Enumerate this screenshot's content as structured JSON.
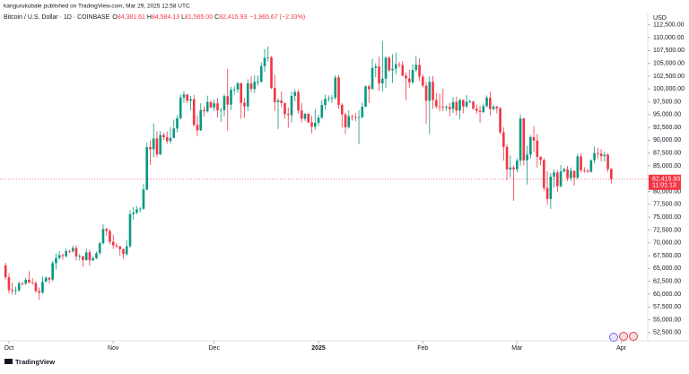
{
  "header": {
    "attribution": "kangurukubale published on TradingView.com, Mar 29, 2025 12:58 UTC",
    "brand": "TradingView"
  },
  "chart_data": {
    "type": "candlestick",
    "title": "Bitcoin / U.S. Dollar · 1D · COINBASE",
    "legend_values": [
      {
        "key": "O",
        "label": "84,381.61"
      },
      {
        "key": "H",
        "label": "84,584.13"
      },
      {
        "key": "L",
        "label": "81,565.00"
      },
      {
        "key": "C",
        "label": "82,415.93"
      }
    ],
    "change_label": "−1,965.67 (−2.33%)",
    "currency": "USD",
    "last_price": {
      "value": 82415.93,
      "label": "82,415.93"
    },
    "countdown": "11:01:13",
    "up_color": "#089981",
    "down_color": "#f23645",
    "xlim": [
      -1.65,
      190.84
    ],
    "xticks": [
      {
        "value": 1,
        "label": "Oct"
      },
      {
        "value": 32,
        "label": "Nov"
      },
      {
        "value": 62,
        "label": "Dec"
      },
      {
        "value": 93,
        "label": "2025",
        "bold": true
      },
      {
        "value": 124,
        "label": "Feb"
      },
      {
        "value": 152,
        "label": "Mar"
      },
      {
        "value": 183,
        "label": "Apr"
      }
    ],
    "ylim": [
      50900,
      114200
    ],
    "yticks": [
      {
        "value": 52500,
        "label": "52,500.00"
      },
      {
        "value": 55000,
        "label": "55,000.00"
      },
      {
        "value": 57500,
        "label": "57,500.00"
      },
      {
        "value": 60000,
        "label": "60,000.00"
      },
      {
        "value": 62500,
        "label": "62,500.00"
      },
      {
        "value": 65000,
        "label": "65,000.00"
      },
      {
        "value": 67500,
        "label": "67,500.00"
      },
      {
        "value": 70000,
        "label": "70,000.00"
      },
      {
        "value": 72500,
        "label": "72,500.00"
      },
      {
        "value": 75000,
        "label": "75,000.00"
      },
      {
        "value": 77500,
        "label": "77,500.00"
      },
      {
        "value": 80000,
        "label": "80,000.00"
      },
      {
        "value": 82500,
        "label": "82,500.00"
      },
      {
        "value": 85000,
        "label": "85,000.00"
      },
      {
        "value": 87500,
        "label": "87,500.00"
      },
      {
        "value": 90000,
        "label": "90,000.00"
      },
      {
        "value": 92500,
        "label": "92,500.00"
      },
      {
        "value": 95000,
        "label": "95,000.00"
      },
      {
        "value": 97500,
        "label": "97,500.00"
      },
      {
        "value": 100000,
        "label": "100,000.00"
      },
      {
        "value": 102500,
        "label": "102,500.00"
      },
      {
        "value": 105000,
        "label": "105,000.00"
      },
      {
        "value": 107500,
        "label": "107,500.00"
      },
      {
        "value": 110000,
        "label": "110,000.00"
      },
      {
        "value": 112500,
        "label": "112,500.00"
      }
    ],
    "open": [
      65600,
      63300,
      60800,
      60600,
      60750,
      62100,
      62050,
      62800,
      62250,
      62150,
      60600,
      60300,
      62400,
      63200,
      62850,
      66050,
      67050,
      67600,
      67400,
      68400,
      68350,
      69000,
      67350,
      67400,
      66650,
      68150,
      66600,
      67000,
      68000,
      69900,
      72700,
      72300,
      70200,
      69500,
      69300,
      68750,
      67800,
      69350,
      75600,
      75900,
      76500,
      76650,
      80400,
      88650,
      88250,
      90350,
      87250,
      91050,
      90600,
      89850,
      90450,
      92300,
      94300,
      98350,
      98950,
      97700,
      98000,
      93000,
      91950,
      95900,
      95650,
      97450,
      96400,
      97200,
      95850,
      95900,
      98600,
      96950,
      99850,
      99900,
      101100,
      97300,
      96600,
      101100,
      100000,
      101400,
      101400,
      104450,
      106050,
      106150,
      100200,
      97450,
      97750,
      97250,
      95100,
      94900,
      98650,
      99400,
      95800,
      94200,
      95150,
      93500,
      92650,
      93400,
      94400,
      96900,
      98100,
      98200,
      98300,
      102250,
      96900,
      95050,
      92550,
      94700,
      94550,
      94500,
      94500,
      96550,
      100500,
      99980,
      104100,
      104400,
      101100,
      102000,
      106100,
      103650,
      103950,
      104800,
      104700,
      102600,
      102050,
      101300,
      103700,
      104700,
      102400,
      100650,
      97700,
      101400,
      97850,
      96600,
      96550,
      96500,
      96500,
      96100,
      97450,
      95800,
      97850,
      96600,
      97500,
      97550,
      96150,
      95750,
      95500,
      96650,
      98300,
      96100,
      96550,
      96250,
      91550,
      88700,
      84300,
      84700,
      84350,
      86050,
      94250,
      86100,
      87200,
      90600,
      89950,
      86750,
      86150,
      80700,
      78550,
      82900,
      83700,
      81050,
      83950,
      84350,
      82600,
      84050,
      82700,
      86850,
      84150,
      84050,
      83850,
      86100,
      87500,
      87400,
      86900,
      87200,
      84381.61
    ],
    "high": [
      66100,
      64000,
      62300,
      61450,
      62450,
      62400,
      63200,
      64450,
      63150,
      62500,
      61300,
      63400,
      63450,
      63300,
      66500,
      67900,
      68400,
      67950,
      68950,
      68700,
      69450,
      69500,
      67850,
      67450,
      68800,
      68700,
      67400,
      68300,
      70250,
      73600,
      72950,
      72650,
      71600,
      69950,
      69400,
      68900,
      70550,
      76400,
      76950,
      77200,
      76950,
      81450,
      89550,
      89950,
      93300,
      91750,
      91800,
      91450,
      91700,
      92600,
      94000,
      94900,
      98950,
      99600,
      98750,
      98650,
      98850,
      94850,
      97200,
      96650,
      98700,
      97750,
      98000,
      98200,
      96300,
      99050,
      103900,
      100400,
      100550,
      101400,
      101300,
      98250,
      101900,
      102500,
      102650,
      102650,
      105200,
      107800,
      108300,
      106450,
      102800,
      98150,
      99500,
      97350,
      96400,
      99500,
      99950,
      99900,
      97300,
      95300,
      95250,
      94750,
      96100,
      94950,
      97800,
      98900,
      98750,
      98800,
      102700,
      102750,
      97250,
      95350,
      95850,
      95000,
      95350,
      95900,
      97350,
      100700,
      100850,
      105900,
      105000,
      106300,
      109350,
      106400,
      106350,
      106800,
      107100,
      105300,
      105450,
      103200,
      103750,
      104800,
      106450,
      106000,
      102800,
      101450,
      102450,
      102550,
      99200,
      99150,
      100100,
      96850,
      97300,
      98350,
      98500,
      98100,
      97950,
      98800,
      97950,
      97700,
      97000,
      96800,
      97150,
      98750,
      99500,
      96950,
      96700,
      96500,
      92500,
      89300,
      87050,
      85100,
      86550,
      95000,
      94400,
      88900,
      91000,
      92800,
      91250,
      86900,
      86500,
      84000,
      83600,
      84300,
      84250,
      85200,
      84650,
      85000,
      84700,
      84050,
      87400,
      87450,
      84750,
      84500,
      86250,
      88750,
      88500,
      88250,
      87800,
      87500,
      84584.13
    ],
    "low": [
      62800,
      60200,
      59900,
      59850,
      60450,
      61700,
      61800,
      62100,
      61850,
      60300,
      58900,
      60050,
      62450,
      62050,
      62500,
      64800,
      66750,
      66700,
      67100,
      68000,
      68100,
      66550,
      66550,
      65300,
      66500,
      65500,
      66450,
      66800,
      67600,
      69700,
      71400,
      69700,
      68800,
      69000,
      67450,
      66850,
      67450,
      69050,
      74500,
      75600,
      75900,
      76500,
      80250,
      85150,
      86650,
      86650,
      87100,
      90100,
      89400,
      89400,
      90400,
      91550,
      94000,
      97300,
      97200,
      95800,
      92650,
      90800,
      91800,
      94650,
      95400,
      96150,
      95700,
      94450,
      93600,
      94650,
      91900,
      95900,
      98850,
      99200,
      94200,
      94350,
      95700,
      99300,
      99200,
      100650,
      101200,
      103350,
      105350,
      100000,
      95700,
      92200,
      96450,
      94250,
      92450,
      93450,
      97600,
      95200,
      93500,
      93800,
      93300,
      91350,
      92050,
      92750,
      94200,
      96000,
      97500,
      97250,
      97900,
      96200,
      92500,
      91200,
      92250,
      93850,
      93700,
      89250,
      94300,
      96500,
      97300,
      99950,
      102300,
      99600,
      99500,
      100200,
      103350,
      101200,
      102800,
      104200,
      102450,
      97800,
      100200,
      101000,
      103300,
      101550,
      100300,
      93200,
      91200,
      96150,
      96200,
      95650,
      95650,
      95750,
      94750,
      95300,
      94850,
      94100,
      95250,
      96250,
      97250,
      95950,
      95150,
      93400,
      95250,
      96450,
      94850,
      95800,
      95250,
      91200,
      86050,
      82250,
      82800,
      78200,
      83700,
      85050,
      85100,
      81400,
      86350,
      87800,
      84650,
      85100,
      80100,
      77400,
      76600,
      80800,
      79950,
      80850,
      83650,
      82050,
      82050,
      81150,
      82450,
      83650,
      83650,
      83650,
      83750,
      85550,
      86300,
      85900,
      85850,
      83800,
      81565
    ],
    "close": [
      63300,
      60800,
      60600,
      60750,
      62100,
      62050,
      62800,
      62250,
      62150,
      60600,
      60300,
      62400,
      63200,
      62850,
      66050,
      67050,
      67600,
      67400,
      68400,
      68350,
      69000,
      67350,
      67400,
      66650,
      68150,
      66600,
      67000,
      68000,
      69900,
      72700,
      72300,
      70200,
      69500,
      69300,
      68750,
      67800,
      69350,
      75600,
      75900,
      76500,
      76650,
      80400,
      88650,
      88250,
      90350,
      87250,
      91050,
      90600,
      89850,
      90450,
      92300,
      94300,
      98350,
      98950,
      97700,
      98000,
      93000,
      91950,
      95900,
      95650,
      97450,
      96400,
      97200,
      95850,
      95900,
      98600,
      96950,
      99850,
      99900,
      101100,
      97300,
      96600,
      101100,
      100000,
      101400,
      101400,
      104450,
      106050,
      106150,
      100200,
      97450,
      97750,
      97250,
      95100,
      94900,
      98650,
      99400,
      95800,
      94200,
      95150,
      93500,
      92650,
      93400,
      94400,
      96900,
      98100,
      98200,
      98300,
      102250,
      96900,
      95050,
      92550,
      94700,
      94550,
      94500,
      94500,
      96550,
      100500,
      99980,
      104100,
      104400,
      101100,
      102000,
      106100,
      103650,
      103950,
      104800,
      104700,
      102600,
      102050,
      101300,
      103700,
      104700,
      102400,
      100650,
      97700,
      101400,
      97850,
      96600,
      96550,
      96500,
      96500,
      96100,
      97450,
      95800,
      97850,
      96600,
      97500,
      97550,
      96150,
      95750,
      95500,
      96650,
      98300,
      96100,
      96550,
      96250,
      91550,
      88700,
      84300,
      84700,
      84350,
      86050,
      94250,
      86100,
      87200,
      90600,
      89950,
      86750,
      86150,
      80700,
      78550,
      82900,
      83700,
      81050,
      83950,
      84350,
      82600,
      84050,
      82700,
      86850,
      84150,
      84050,
      83850,
      86100,
      87500,
      87400,
      86900,
      87200,
      84381.61,
      82415.93
    ]
  }
}
